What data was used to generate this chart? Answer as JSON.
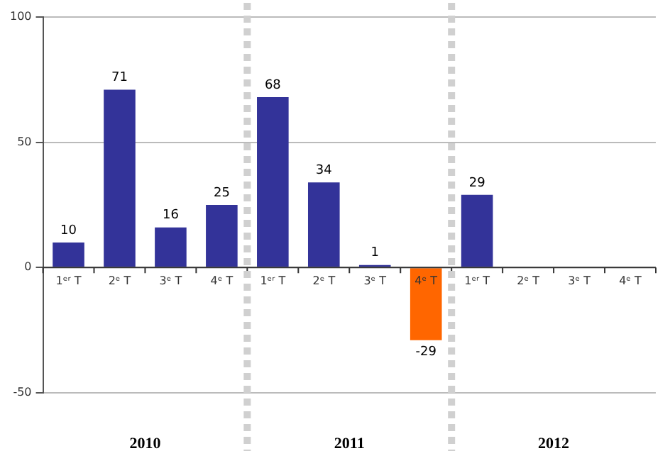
{
  "chart_data": {
    "type": "bar",
    "categories": [
      "1ᵉʳ T",
      "2ᵉ T",
      "3ᵉ T",
      "4ᵉ T",
      "1ᵉʳ T",
      "2ᵉ T",
      "3ᵉ T",
      "4ᵉ T",
      "1ᵉʳ T",
      "2ᵉ T",
      "3ᵉ T",
      "4ᵉ T"
    ],
    "values": [
      10,
      71,
      16,
      25,
      68,
      34,
      1,
      -29,
      29,
      null,
      null,
      null
    ],
    "colors": [
      "#333399",
      "#333399",
      "#333399",
      "#333399",
      "#333399",
      "#333399",
      "#333399",
      "#ff6600",
      "#333399",
      "#333399",
      "#333399",
      "#333399"
    ],
    "ylim": [
      -50,
      100
    ],
    "yticks": [
      -50,
      0,
      50,
      100
    ],
    "grid": "y",
    "data_labels": true,
    "annotations": [
      "2010",
      "2011",
      "2012"
    ]
  }
}
